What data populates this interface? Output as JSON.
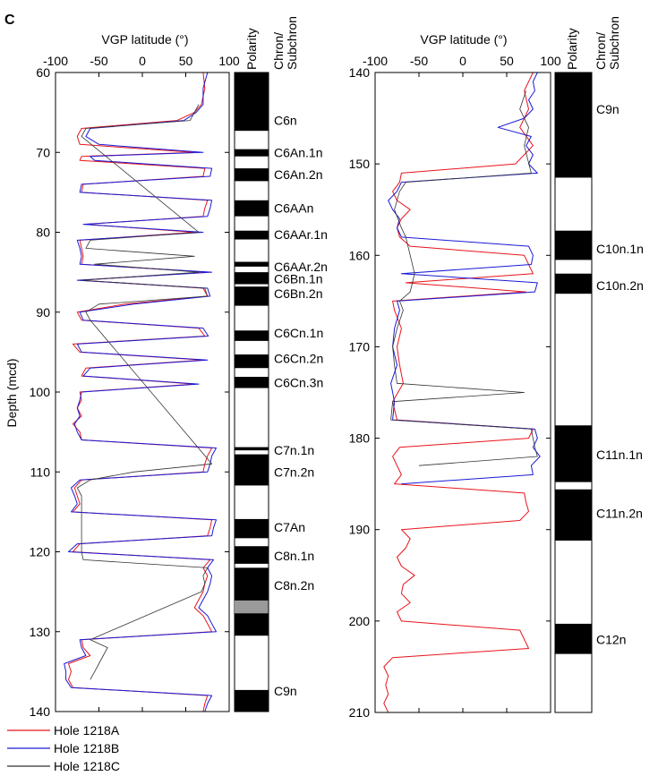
{
  "panel_letter": "C",
  "legend": [
    {
      "label": "Hole 1218A",
      "color": "#e8141b"
    },
    {
      "label": "Hole 1218B",
      "color": "#1a1ad6"
    },
    {
      "label": "Hole 1218C",
      "color": "#333333"
    }
  ],
  "chart_data": [
    {
      "type": "line",
      "xlabel": "VGP latitude (°)",
      "ylabel": "Depth (mcd)",
      "xlim": [
        -100,
        100
      ],
      "ylim": [
        60,
        140
      ],
      "xticks": [
        -100,
        -50,
        0,
        50,
        100
      ],
      "yticks": [
        60,
        70,
        80,
        90,
        100,
        110,
        120,
        130,
        140
      ],
      "column_headers": [
        "Polarity",
        "Chron/\nSubchron"
      ],
      "polarity_blocks": [
        {
          "top": 60.0,
          "bottom": 67.3,
          "type": "normal"
        },
        {
          "top": 69.6,
          "bottom": 70.5,
          "type": "normal"
        },
        {
          "top": 72.0,
          "bottom": 73.6,
          "type": "normal"
        },
        {
          "top": 76.0,
          "bottom": 78.0,
          "type": "normal"
        },
        {
          "top": 79.8,
          "bottom": 80.9,
          "type": "normal"
        },
        {
          "top": 83.7,
          "bottom": 84.3,
          "type": "normal"
        },
        {
          "top": 85.0,
          "bottom": 86.5,
          "type": "normal"
        },
        {
          "top": 86.8,
          "bottom": 89.2,
          "type": "normal"
        },
        {
          "top": 92.3,
          "bottom": 93.6,
          "type": "normal"
        },
        {
          "top": 95.3,
          "bottom": 97.0,
          "type": "normal"
        },
        {
          "top": 98.1,
          "bottom": 99.5,
          "type": "normal"
        },
        {
          "top": 106.9,
          "bottom": 107.3,
          "type": "normal"
        },
        {
          "top": 107.8,
          "bottom": 111.7,
          "type": "normal"
        },
        {
          "top": 115.9,
          "bottom": 118.3,
          "type": "normal"
        },
        {
          "top": 119.3,
          "bottom": 121.5,
          "type": "normal"
        },
        {
          "top": 122.0,
          "bottom": 126.1,
          "type": "normal"
        },
        {
          "top": 126.1,
          "bottom": 127.7,
          "type": "uncertain"
        },
        {
          "top": 127.7,
          "bottom": 130.5,
          "type": "normal"
        },
        {
          "top": 137.3,
          "bottom": 140.0,
          "type": "normal"
        }
      ],
      "chron_labels": [
        {
          "label": "C6n",
          "depth": 66.0
        },
        {
          "label": "C6An.1n",
          "depth": 70.0
        },
        {
          "label": "C6An.2n",
          "depth": 72.8
        },
        {
          "label": "C6AAn",
          "depth": 77.0
        },
        {
          "label": "C6AAr.1n",
          "depth": 80.3
        },
        {
          "label": "C6AAr.2n",
          "depth": 84.3
        },
        {
          "label": "C6Bn.1n",
          "depth": 85.8
        },
        {
          "label": "C6Bn.2n",
          "depth": 87.7
        },
        {
          "label": "C6Cn.1n",
          "depth": 92.6
        },
        {
          "label": "C6Cn.2n",
          "depth": 95.8
        },
        {
          "label": "C6Cn.3n",
          "depth": 98.8
        },
        {
          "label": "C7n.1n",
          "depth": 107.3
        },
        {
          "label": "C7n.2n",
          "depth": 110.0
        },
        {
          "label": "C7An",
          "depth": 116.9
        },
        {
          "label": "C8n.1n",
          "depth": 120.5
        },
        {
          "label": "C8n.2n",
          "depth": 124.2
        },
        {
          "label": "C9n",
          "depth": 137.4
        }
      ],
      "series": [
        {
          "name": "Hole 1218A",
          "color": "#e8141b",
          "depth": [
            60,
            62,
            64,
            65,
            66,
            67,
            68,
            69,
            70,
            70.5,
            71,
            72,
            73,
            74,
            75,
            76,
            77,
            78,
            79,
            80,
            81,
            82,
            83,
            84,
            85,
            86,
            87,
            88,
            89,
            90,
            91,
            92,
            93,
            94,
            95,
            96,
            97,
            98,
            99,
            100,
            101,
            102,
            103,
            104,
            105,
            106,
            107,
            108,
            109,
            110,
            111,
            112,
            113,
            114,
            115,
            116,
            117,
            118,
            119,
            120,
            121,
            122,
            123,
            124,
            125,
            126,
            127,
            128,
            129,
            130,
            131,
            132,
            133,
            134,
            135,
            136,
            137,
            138,
            139,
            140
          ],
          "vgp": [
            70,
            72,
            68,
            60,
            40,
            -70,
            -75,
            -72,
            60,
            -70,
            -72,
            72,
            70,
            -68,
            -70,
            75,
            72,
            70,
            -65,
            60,
            -72,
            -70,
            -68,
            -70,
            75,
            -72,
            70,
            75,
            -20,
            -75,
            -70,
            65,
            72,
            -80,
            -72,
            70,
            -65,
            -70,
            60,
            -72,
            -70,
            -75,
            -70,
            -80,
            -72,
            -70,
            80,
            75,
            72,
            70,
            -70,
            -78,
            -75,
            -72,
            -80,
            80,
            78,
            75,
            -72,
            -80,
            78,
            70,
            75,
            72,
            70,
            65,
            60,
            70,
            75,
            80,
            -70,
            -68,
            -60,
            -85,
            -82,
            -85,
            -80,
            75,
            72,
            70
          ]
        },
        {
          "name": "Hole 1218B",
          "color": "#1a1ad6",
          "depth": [
            60,
            62,
            64,
            65,
            66,
            67,
            68,
            69,
            70,
            70.5,
            71,
            72,
            73,
            74,
            75,
            76,
            77,
            78,
            79,
            80,
            81,
            82,
            83,
            84,
            85,
            86,
            87,
            88,
            89,
            90,
            91,
            92,
            93,
            94,
            95,
            96,
            97,
            98,
            99,
            100,
            101,
            102,
            103,
            104,
            105,
            106,
            107,
            108,
            109,
            110,
            111,
            112,
            113,
            114,
            115,
            116,
            117,
            118,
            119,
            120,
            121,
            122,
            123,
            124,
            125,
            126,
            127,
            128,
            129,
            130,
            131,
            132,
            133,
            134,
            135,
            136,
            137,
            138,
            139,
            140
          ],
          "vgp": [
            75,
            70,
            70,
            62,
            48,
            -60,
            -65,
            -50,
            70,
            -60,
            -55,
            80,
            78,
            -70,
            -72,
            80,
            78,
            75,
            -68,
            70,
            -75,
            -72,
            -70,
            -72,
            80,
            -75,
            75,
            78,
            -10,
            -72,
            -68,
            70,
            76,
            -75,
            -70,
            75,
            -60,
            -68,
            65,
            -70,
            -72,
            -75,
            -72,
            -78,
            -75,
            -70,
            85,
            80,
            78,
            75,
            -72,
            -82,
            -78,
            -75,
            -82,
            85,
            82,
            80,
            -75,
            -85,
            82,
            75,
            80,
            78,
            75,
            70,
            65,
            75,
            80,
            85,
            -72,
            -70,
            -65,
            -90,
            -88,
            -88,
            -82,
            80,
            75,
            72
          ]
        },
        {
          "name": "Hole 1218C",
          "color": "#333333",
          "depth": [
            64,
            66,
            67,
            68,
            80,
            81,
            82,
            83,
            84,
            85,
            86,
            87,
            88,
            89,
            90,
            91,
            109,
            110,
            111,
            112,
            113,
            114,
            120,
            121,
            122,
            123,
            124,
            125,
            131,
            132,
            133,
            134,
            135,
            136
          ],
          "vgp": [
            65,
            55,
            -65,
            -70,
            65,
            -60,
            -65,
            60,
            -55,
            65,
            -70,
            72,
            75,
            -50,
            -65,
            -60,
            80,
            -10,
            -60,
            -75,
            -70,
            -70,
            -70,
            -68,
            75,
            70,
            72,
            68,
            -60,
            -40,
            -45,
            -50,
            -55,
            -60
          ]
        }
      ]
    },
    {
      "type": "line",
      "xlabel": "VGP latitude (°)",
      "ylabel": "",
      "xlim": [
        -100,
        100
      ],
      "ylim": [
        140,
        210
      ],
      "xticks": [
        -100,
        -50,
        0,
        50,
        100
      ],
      "yticks": [
        140,
        150,
        160,
        170,
        180,
        190,
        200,
        210
      ],
      "column_headers": [
        "Polarity",
        "Chron/\nSubchron"
      ],
      "polarity_blocks": [
        {
          "top": 140.0,
          "bottom": 151.5,
          "type": "normal"
        },
        {
          "top": 157.3,
          "bottom": 160.5,
          "type": "normal"
        },
        {
          "top": 162.0,
          "bottom": 164.2,
          "type": "normal"
        },
        {
          "top": 178.6,
          "bottom": 184.8,
          "type": "normal"
        },
        {
          "top": 185.6,
          "bottom": 191.2,
          "type": "normal"
        },
        {
          "top": 200.3,
          "bottom": 203.6,
          "type": "normal"
        }
      ],
      "chron_labels": [
        {
          "label": "C9n",
          "depth": 144.0
        },
        {
          "label": "C10n.1n",
          "depth": 159.3
        },
        {
          "label": "C10n.2n",
          "depth": 163.3
        },
        {
          "label": "C11n.1n",
          "depth": 181.8
        },
        {
          "label": "C11n.2n",
          "depth": 188.2
        },
        {
          "label": "C12n",
          "depth": 202.0
        }
      ],
      "series": [
        {
          "name": "Hole 1218A",
          "color": "#e8141b",
          "depth": [
            140,
            142,
            144,
            146,
            148,
            150,
            151,
            152,
            153,
            154,
            155,
            156,
            157,
            158,
            159,
            160,
            161,
            162,
            163,
            164,
            165,
            166,
            168,
            170,
            172,
            174,
            176,
            178,
            179,
            180,
            181,
            182,
            183,
            184,
            185,
            186,
            187,
            188,
            189,
            190,
            191,
            192,
            193,
            194,
            195,
            196,
            197,
            198,
            199,
            200,
            201,
            202,
            203,
            204,
            205,
            206,
            207,
            208,
            209,
            210
          ],
          "vgp": [
            80,
            70,
            75,
            65,
            80,
            60,
            -70,
            -72,
            -80,
            -75,
            -60,
            -70,
            -75,
            -72,
            -60,
            70,
            75,
            80,
            -65,
            72,
            -80,
            -78,
            -70,
            -75,
            -72,
            -68,
            -80,
            -75,
            80,
            75,
            -72,
            -80,
            -75,
            -70,
            -78,
            70,
            72,
            75,
            65,
            -70,
            -60,
            -65,
            -75,
            -70,
            -55,
            -68,
            -70,
            -60,
            -75,
            -70,
            65,
            70,
            75,
            -80,
            -90,
            -85,
            -88,
            -85,
            -90,
            -85
          ]
        },
        {
          "name": "Hole 1218B",
          "color": "#1a1ad6",
          "depth": [
            140,
            141,
            142,
            143,
            144,
            145,
            146,
            147,
            148,
            149,
            150,
            151,
            152,
            153,
            154,
            155,
            156,
            157,
            158,
            159,
            160,
            161,
            162,
            163,
            164,
            165,
            166,
            168,
            170,
            172,
            174,
            176,
            178,
            179,
            180,
            181,
            182,
            183,
            184,
            185
          ],
          "vgp": [
            85,
            80,
            82,
            75,
            80,
            70,
            40,
            78,
            72,
            80,
            75,
            85,
            -70,
            -75,
            -85,
            -80,
            -72,
            -75,
            -70,
            75,
            80,
            78,
            -70,
            85,
            82,
            -75,
            -72,
            -78,
            -80,
            -75,
            -82,
            -78,
            -80,
            82,
            85,
            80,
            88,
            78,
            80,
            -70
          ]
        },
        {
          "name": "Hole 1218C",
          "color": "#333333",
          "depth": [
            142,
            144,
            146,
            148,
            151,
            152,
            153,
            155,
            157,
            158,
            162,
            164,
            165,
            166,
            168,
            170,
            172,
            174,
            175,
            176,
            178,
            179,
            180,
            181,
            182,
            183
          ],
          "vgp": [
            72,
            65,
            75,
            70,
            78,
            -65,
            -72,
            -78,
            -70,
            -65,
            -55,
            -60,
            -72,
            -68,
            -75,
            -80,
            -78,
            -75,
            70,
            -80,
            -82,
            78,
            80,
            82,
            85,
            -50
          ]
        }
      ]
    }
  ]
}
